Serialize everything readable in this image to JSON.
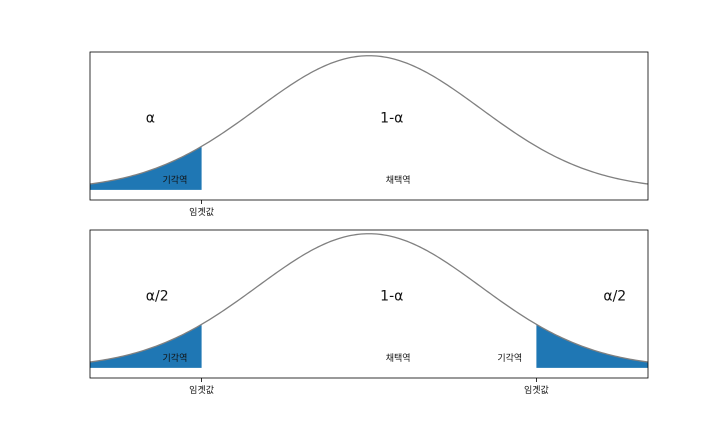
{
  "chart_data": [
    {
      "type": "area",
      "title": "",
      "xlabel": "",
      "ylabel": "",
      "xlim": [
        -2.5,
        2.5
      ],
      "ylim": [
        -0.03,
        0.41
      ],
      "grid": false,
      "curve": "standard-normal-pdf",
      "curve_range": [
        -2.5,
        2.5
      ],
      "curve_color": "#808080",
      "fill_color": "#1f77b4",
      "rejection_regions": [
        [
          -2.5,
          -1.5
        ]
      ],
      "critical_values": [
        -1.5
      ],
      "tick_labels": [
        "임곗값"
      ],
      "annotations": [
        {
          "text": "α",
          "x": -2.0,
          "y": 0.2,
          "size": "large"
        },
        {
          "text": "1-α",
          "x": 0.1,
          "y": 0.2,
          "size": "large"
        },
        {
          "text": "기각역",
          "x": -1.85,
          "y": 0.02,
          "size": "small"
        },
        {
          "text": "채택역",
          "x": 0.15,
          "y": 0.02,
          "size": "small"
        }
      ]
    },
    {
      "type": "area",
      "title": "",
      "xlabel": "",
      "ylabel": "",
      "xlim": [
        -2.5,
        2.5
      ],
      "ylim": [
        -0.03,
        0.41
      ],
      "grid": false,
      "curve": "standard-normal-pdf",
      "curve_range": [
        -2.5,
        2.5
      ],
      "curve_color": "#808080",
      "fill_color": "#1f77b4",
      "rejection_regions": [
        [
          -2.5,
          -1.5
        ],
        [
          1.5,
          2.5
        ]
      ],
      "critical_values": [
        -1.5,
        1.5
      ],
      "tick_labels": [
        "임곗값",
        "임곗값"
      ],
      "annotations": [
        {
          "text": "α/2",
          "x": -2.0,
          "y": 0.2,
          "size": "large"
        },
        {
          "text": "1-α",
          "x": 0.1,
          "y": 0.2,
          "size": "large"
        },
        {
          "text": "α/2",
          "x": 2.1,
          "y": 0.2,
          "size": "large"
        },
        {
          "text": "기각역",
          "x": -1.85,
          "y": 0.02,
          "size": "small"
        },
        {
          "text": "채택역",
          "x": 0.15,
          "y": 0.02,
          "size": "small"
        },
        {
          "text": "기각역",
          "x": 1.15,
          "y": 0.02,
          "size": "small"
        }
      ]
    }
  ]
}
